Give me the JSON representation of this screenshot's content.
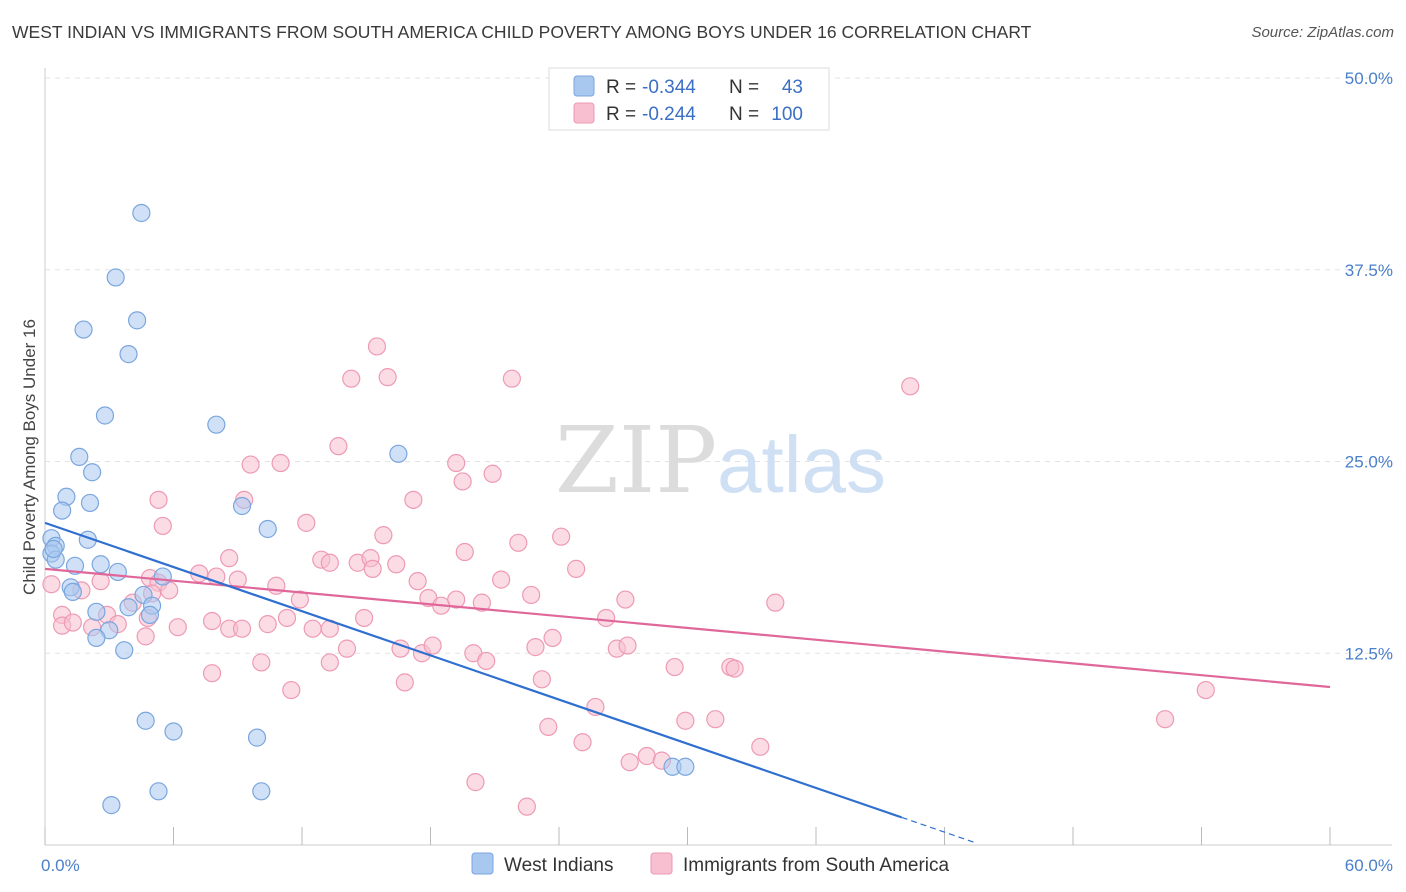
{
  "title": "WEST INDIAN VS IMMIGRANTS FROM SOUTH AMERICA CHILD POVERTY AMONG BOYS UNDER 16 CORRELATION CHART",
  "source": "Source: ZipAtlas.com",
  "watermark": {
    "part1": "ZIP",
    "part2": "atlas"
  },
  "colors": {
    "blue_fill": "#a9c8f0",
    "blue_stroke": "#7aa6de",
    "blue_line": "#2f6fd0",
    "pink_fill": "#f7bfd0",
    "pink_stroke": "#ee9ab4",
    "pink_line": "#e0679a",
    "grid": "#e3e3e3",
    "tick_label": "#4a7fc9"
  },
  "legend": {
    "rows": [
      {
        "r_label": "R =",
        "r_value": "-0.344",
        "n_label": "N =",
        "n_value": "43"
      },
      {
        "r_label": "R =",
        "r_value": "-0.244",
        "n_label": "N =",
        "n_value": "100"
      }
    ]
  },
  "chart_data": {
    "type": "scatter",
    "xlabel": "",
    "ylabel": "Child Poverty Among Boys Under 16",
    "xlim": [
      0,
      60
    ],
    "ylim": [
      0,
      50
    ],
    "x_tick_labels": [
      "0.0%",
      "60.0%"
    ],
    "y_ticks": [
      12.5,
      25.0,
      37.5,
      50.0
    ],
    "y_tick_labels": [
      "12.5%",
      "25.0%",
      "37.5%",
      "50.0%"
    ],
    "grid": true,
    "legend_position": "top-center",
    "series": [
      {
        "name": "West Indians",
        "R": -0.344,
        "N": 43,
        "trend": {
          "x0": 0,
          "y0": 21.0,
          "x1": 40.0,
          "y1": 1.8,
          "dash_to_x": 43.5
        },
        "points": [
          [
            4.5,
            41.2
          ],
          [
            3.3,
            37.0
          ],
          [
            1.8,
            33.6
          ],
          [
            4.3,
            34.2
          ],
          [
            3.9,
            32.0
          ],
          [
            2.8,
            28.0
          ],
          [
            8.0,
            27.4
          ],
          [
            1.6,
            25.3
          ],
          [
            2.2,
            24.3
          ],
          [
            16.5,
            25.5
          ],
          [
            1.0,
            22.7
          ],
          [
            2.1,
            22.3
          ],
          [
            9.2,
            22.1
          ],
          [
            0.8,
            21.8
          ],
          [
            10.4,
            20.6
          ],
          [
            0.3,
            20.0
          ],
          [
            0.5,
            19.5
          ],
          [
            2.0,
            19.9
          ],
          [
            0.3,
            19.0
          ],
          [
            0.5,
            18.6
          ],
          [
            2.6,
            18.3
          ],
          [
            1.4,
            18.2
          ],
          [
            3.4,
            17.8
          ],
          [
            5.5,
            17.5
          ],
          [
            1.2,
            16.8
          ],
          [
            1.3,
            16.5
          ],
          [
            4.6,
            16.3
          ],
          [
            3.9,
            15.5
          ],
          [
            5.0,
            15.6
          ],
          [
            2.4,
            15.2
          ],
          [
            4.9,
            15.0
          ],
          [
            3.0,
            14.0
          ],
          [
            2.4,
            13.5
          ],
          [
            3.7,
            12.7
          ],
          [
            4.7,
            8.1
          ],
          [
            6.0,
            7.4
          ],
          [
            9.9,
            7.0
          ],
          [
            29.3,
            5.1
          ],
          [
            29.9,
            5.1
          ],
          [
            5.3,
            3.5
          ],
          [
            10.1,
            3.5
          ],
          [
            3.1,
            2.6
          ],
          [
            0.4,
            19.3
          ]
        ]
      },
      {
        "name": "Immigrants from South America",
        "R": -0.244,
        "N": 100,
        "trend": {
          "x0": 0,
          "y0": 18.0,
          "x1": 60.0,
          "y1": 10.3
        },
        "points": [
          [
            0.3,
            17.0
          ],
          [
            0.8,
            15.0
          ],
          [
            0.8,
            14.3
          ],
          [
            1.3,
            14.5
          ],
          [
            2.2,
            14.2
          ],
          [
            1.7,
            16.6
          ],
          [
            2.6,
            17.2
          ],
          [
            2.9,
            15.0
          ],
          [
            3.4,
            14.4
          ],
          [
            4.8,
            14.8
          ],
          [
            4.1,
            15.8
          ],
          [
            4.9,
            17.4
          ],
          [
            5.3,
            17.1
          ],
          [
            5.8,
            16.6
          ],
          [
            5.0,
            16.4
          ],
          [
            4.7,
            13.6
          ],
          [
            6.2,
            14.2
          ],
          [
            5.3,
            22.5
          ],
          [
            5.5,
            20.8
          ],
          [
            7.2,
            17.7
          ],
          [
            8.0,
            17.5
          ],
          [
            8.6,
            18.7
          ],
          [
            9.0,
            17.3
          ],
          [
            7.8,
            14.6
          ],
          [
            8.6,
            14.1
          ],
          [
            9.2,
            14.1
          ],
          [
            7.8,
            11.2
          ],
          [
            9.3,
            22.5
          ],
          [
            9.6,
            24.8
          ],
          [
            10.1,
            11.9
          ],
          [
            10.4,
            14.4
          ],
          [
            10.8,
            16.9
          ],
          [
            11.3,
            14.8
          ],
          [
            11.0,
            24.9
          ],
          [
            11.5,
            10.1
          ],
          [
            11.9,
            16.0
          ],
          [
            12.2,
            21.0
          ],
          [
            12.5,
            14.1
          ],
          [
            12.9,
            18.6
          ],
          [
            13.3,
            11.9
          ],
          [
            13.3,
            14.1
          ],
          [
            13.7,
            26.0
          ],
          [
            14.1,
            12.8
          ],
          [
            14.6,
            18.4
          ],
          [
            14.9,
            14.8
          ],
          [
            15.2,
            18.7
          ],
          [
            15.3,
            18.0
          ],
          [
            14.3,
            30.4
          ],
          [
            15.5,
            32.5
          ],
          [
            15.8,
            20.2
          ],
          [
            16.0,
            30.5
          ],
          [
            16.4,
            18.3
          ],
          [
            16.6,
            12.8
          ],
          [
            16.8,
            10.6
          ],
          [
            17.2,
            22.5
          ],
          [
            17.4,
            17.2
          ],
          [
            17.6,
            12.5
          ],
          [
            17.9,
            16.1
          ],
          [
            18.1,
            13.0
          ],
          [
            18.5,
            15.6
          ],
          [
            19.2,
            16.0
          ],
          [
            19.2,
            24.9
          ],
          [
            19.6,
            19.1
          ],
          [
            19.5,
            23.7
          ],
          [
            20.0,
            12.5
          ],
          [
            20.4,
            15.8
          ],
          [
            20.6,
            12.0
          ],
          [
            20.9,
            24.2
          ],
          [
            21.3,
            17.3
          ],
          [
            21.8,
            30.4
          ],
          [
            22.1,
            19.7
          ],
          [
            22.7,
            16.3
          ],
          [
            22.9,
            12.9
          ],
          [
            23.2,
            10.8
          ],
          [
            23.7,
            13.5
          ],
          [
            24.1,
            20.1
          ],
          [
            24.8,
            18.0
          ],
          [
            25.1,
            6.7
          ],
          [
            25.7,
            9.0
          ],
          [
            26.2,
            14.8
          ],
          [
            26.7,
            12.8
          ],
          [
            27.1,
            16.0
          ],
          [
            27.2,
            13.0
          ],
          [
            27.3,
            5.4
          ],
          [
            28.1,
            5.8
          ],
          [
            28.8,
            5.5
          ],
          [
            29.4,
            11.6
          ],
          [
            29.9,
            8.1
          ],
          [
            31.3,
            8.2
          ],
          [
            32.0,
            11.6
          ],
          [
            32.2,
            11.5
          ],
          [
            33.4,
            6.4
          ],
          [
            34.1,
            15.8
          ],
          [
            40.4,
            29.9
          ],
          [
            54.2,
            10.1
          ],
          [
            52.3,
            8.2
          ],
          [
            20.1,
            4.1
          ],
          [
            22.5,
            2.5
          ],
          [
            23.5,
            7.7
          ],
          [
            13.3,
            18.4
          ]
        ]
      }
    ]
  }
}
